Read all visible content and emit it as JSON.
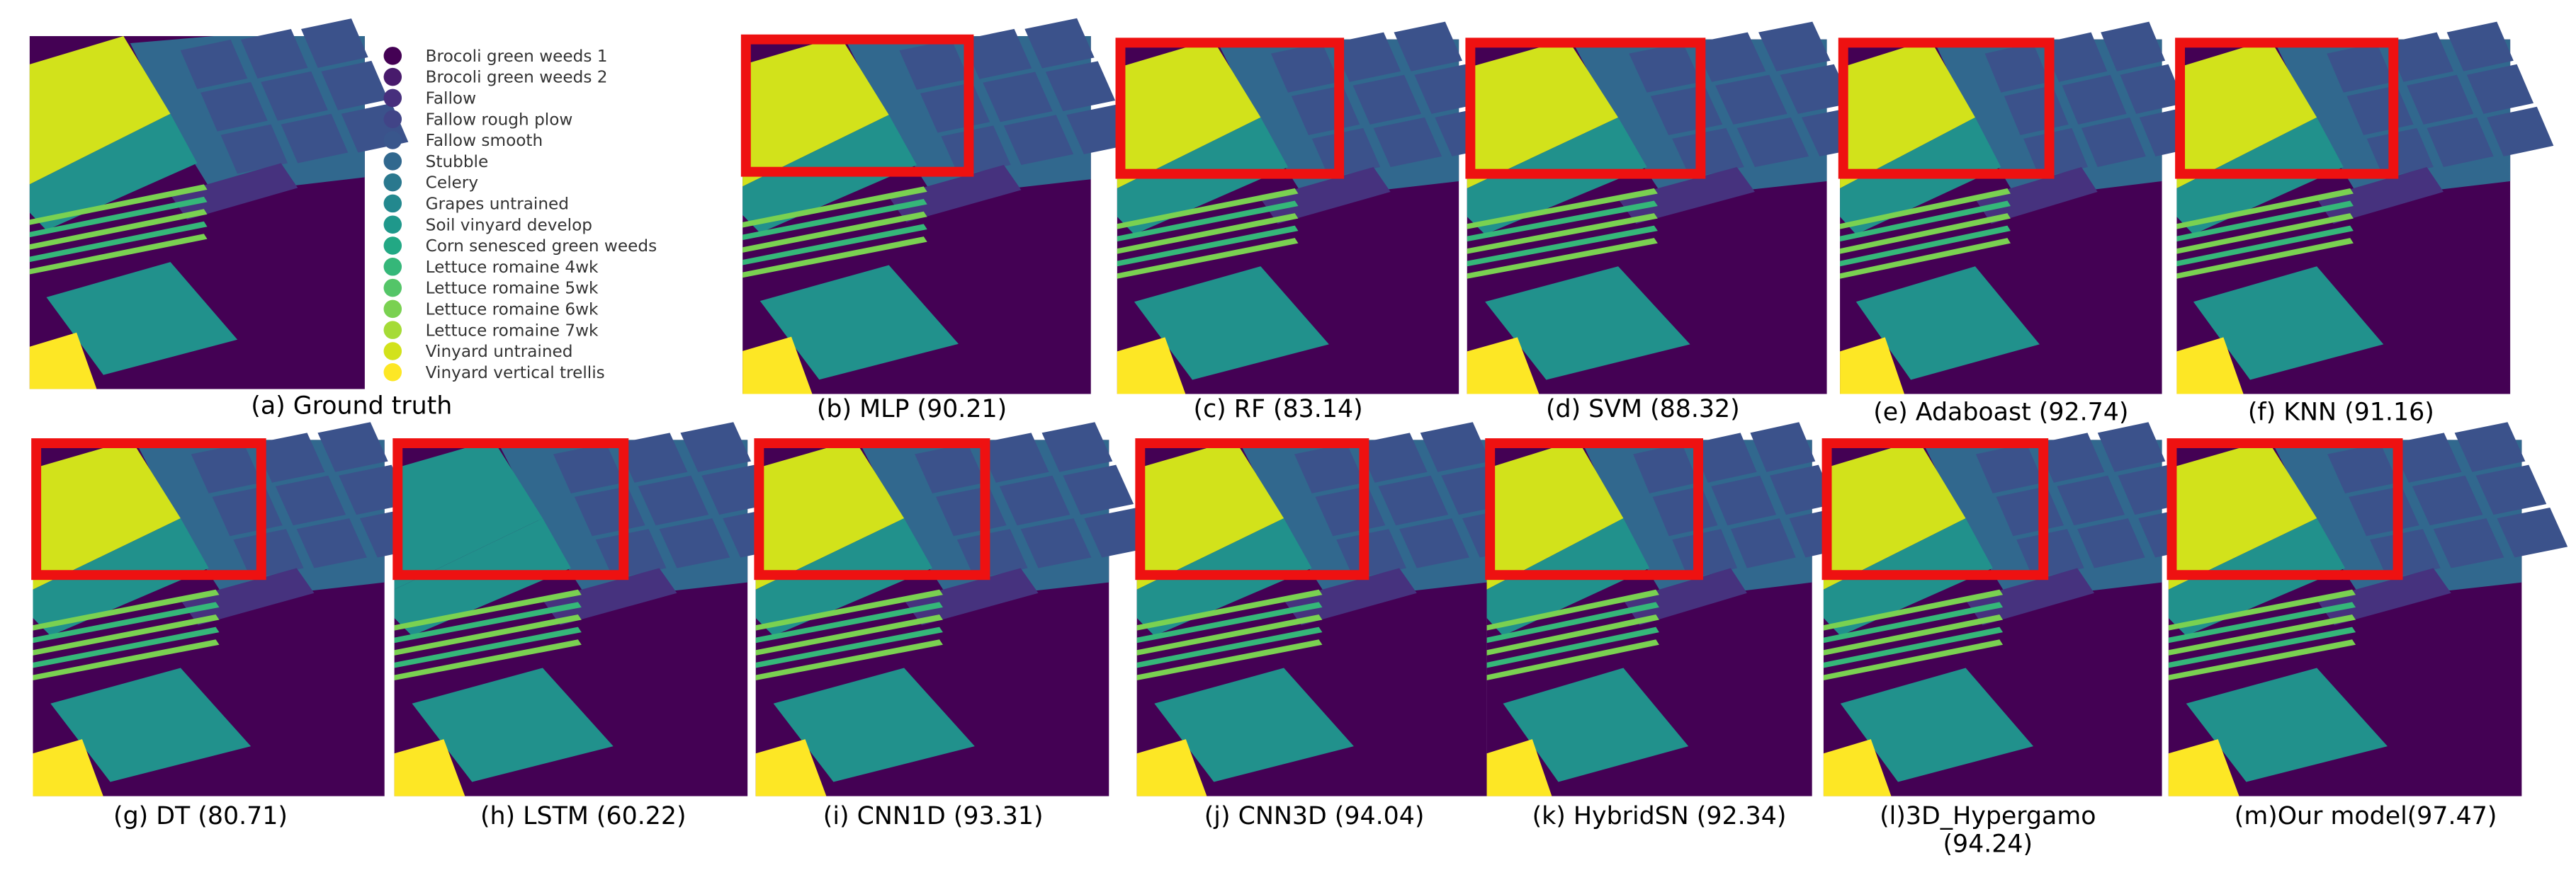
{
  "legend": [
    {
      "label": "Brocoli green weeds 1",
      "color": "#440154"
    },
    {
      "label": "Brocoli green weeds 2",
      "color": "#481a6c"
    },
    {
      "label": "Fallow",
      "color": "#472f7d"
    },
    {
      "label": "Fallow rough plow",
      "color": "#414487"
    },
    {
      "label": "Fallow smooth",
      "color": "#39568c"
    },
    {
      "label": "Stubble",
      "color": "#31688e"
    },
    {
      "label": "Celery",
      "color": "#2a788e"
    },
    {
      "label": "Grapes untrained",
      "color": "#23888e"
    },
    {
      "label": "Soil vinyard develop",
      "color": "#1f988b"
    },
    {
      "label": "Corn senesced green weeds",
      "color": "#22a884"
    },
    {
      "label": "Lettuce romaine 4wk",
      "color": "#35b779"
    },
    {
      "label": "Lettuce romaine 5wk",
      "color": "#54c568"
    },
    {
      "label": "Lettuce romaine 6wk",
      "color": "#7ad151"
    },
    {
      "label": "Lettuce romaine 7wk",
      "color": "#a5db36"
    },
    {
      "label": "Vinyard untrained",
      "color": "#d2e21b"
    },
    {
      "label": "Vinyard vertical trellis",
      "color": "#fde725"
    }
  ],
  "panels": [
    {
      "caption": [
        "(a) Ground truth"
      ]
    },
    {
      "caption": [
        "(b) MLP (90.21)"
      ]
    },
    {
      "caption": [
        "(c) RF (83.14)"
      ]
    },
    {
      "caption": [
        "(d) SVM (88.32)"
      ]
    },
    {
      "caption": [
        "(e)  Adaboast (92.74)"
      ]
    },
    {
      "caption": [
        "(f) KNN (91.16)"
      ]
    },
    {
      "caption": [
        "(g) DT (80.71)"
      ]
    },
    {
      "caption": [
        "(h) LSTM (60.22)"
      ]
    },
    {
      "caption": [
        "(i) CNN1D (93.31)"
      ]
    },
    {
      "caption": [
        "(j) CNN3D (94.04)"
      ]
    },
    {
      "caption": [
        "(k) HybridSN (92.34)"
      ]
    },
    {
      "caption": [
        "(l)3D_Hypergamo",
        "(94.24)"
      ]
    },
    {
      "caption": [
        "(m)Our model(97.47)"
      ]
    }
  ]
}
